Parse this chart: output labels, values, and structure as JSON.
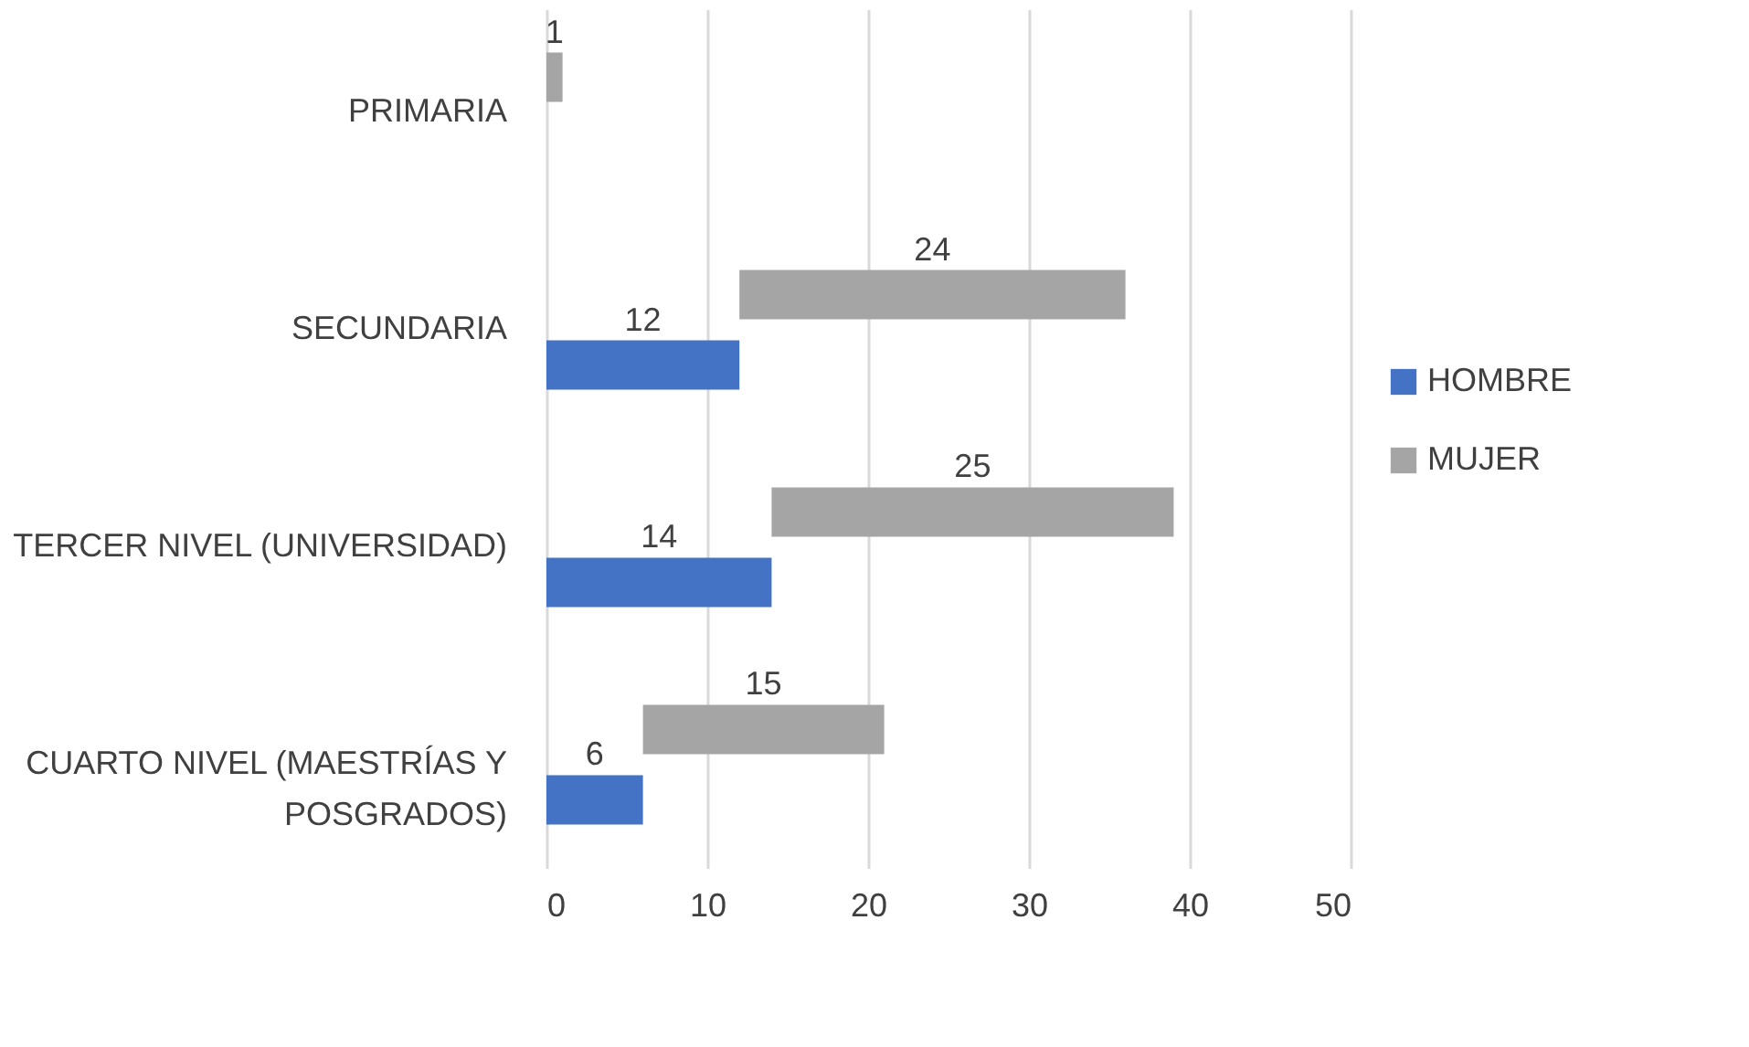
{
  "chart_data": {
    "type": "bar",
    "orientation": "horizontal",
    "stacked": true,
    "categories": [
      "PRIMARIA",
      "SECUNDARIA",
      "TERCER NIVEL (UNIVERSIDAD)",
      "CUARTO NIVEL (MAESTRÍAS Y POSGRADOS)"
    ],
    "series": [
      {
        "name": "HOMBRE",
        "color": "#4472c4",
        "values": [
          null,
          12,
          14,
          6
        ]
      },
      {
        "name": "MUJER",
        "color": "#a5a5a5",
        "values": [
          1,
          24,
          25,
          15
        ]
      }
    ],
    "xlim": [
      0,
      50
    ],
    "xticks": [
      0,
      10,
      20,
      30,
      40,
      50
    ],
    "grid": "x",
    "legend": "right",
    "data_labels": true
  }
}
